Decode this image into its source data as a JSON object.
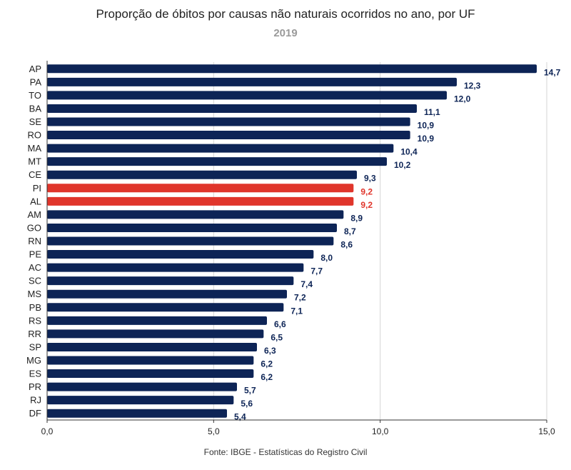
{
  "chart_data": {
    "type": "bar",
    "orientation": "horizontal",
    "title": "Proporção de óbitos por causas não naturais ocorridos no ano, por UF",
    "subtitle": "2019",
    "source": "Fonte: IBGE - Estatísticas do Registro Civil",
    "categories": [
      "AP",
      "PA",
      "TO",
      "BA",
      "SE",
      "RO",
      "MA",
      "MT",
      "CE",
      "PI",
      "AL",
      "AM",
      "GO",
      "RN",
      "PE",
      "AC",
      "SC",
      "MS",
      "PB",
      "RS",
      "RR",
      "SP",
      "MG",
      "ES",
      "PR",
      "RJ",
      "DF"
    ],
    "values": [
      14.7,
      12.3,
      12.0,
      11.1,
      10.9,
      10.9,
      10.4,
      10.2,
      9.3,
      9.2,
      9.2,
      8.9,
      8.7,
      8.6,
      8.0,
      7.7,
      7.4,
      7.2,
      7.1,
      6.6,
      6.5,
      6.3,
      6.2,
      6.2,
      5.7,
      5.6,
      5.4
    ],
    "value_labels": [
      "14,7",
      "12,3",
      "12,0",
      "11,1",
      "10,9",
      "10,9",
      "10,4",
      "10,2",
      "9,3",
      "9,2",
      "9,2",
      "8,9",
      "8,7",
      "8,6",
      "8,0",
      "7,7",
      "7,4",
      "7,2",
      "7,1",
      "6,6",
      "6,5",
      "6,3",
      "6,2",
      "6,2",
      "5,7",
      "5,6",
      "5,4"
    ],
    "highlighted": [
      "PI",
      "AL"
    ],
    "xlim": [
      0,
      15
    ],
    "xticks": [
      0,
      5,
      10,
      15
    ],
    "xtick_labels": [
      "0,0",
      "5,0",
      "10,0",
      "15,0"
    ],
    "grid": "vertical",
    "colors": {
      "bar": "#0d2456",
      "highlight": "#e0352b",
      "grid": "#d6d6d6",
      "axis": "#333333"
    }
  }
}
